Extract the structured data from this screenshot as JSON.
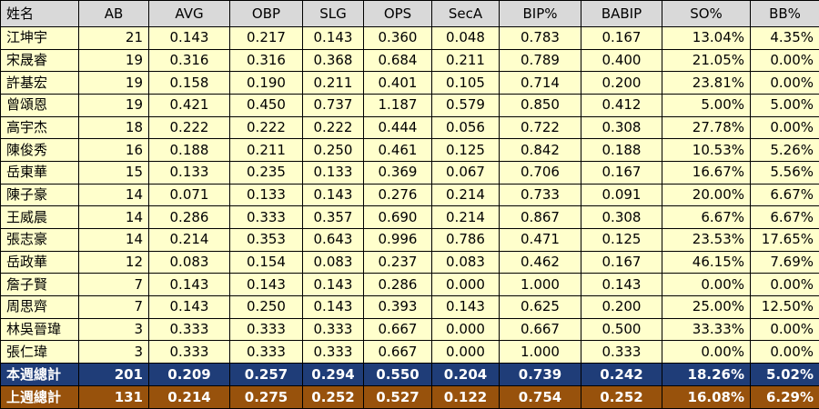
{
  "colors": {
    "header_bg": "#d9d9d9",
    "row_bg": "#ffffcc",
    "this_week_bg": "#1f3d78",
    "last_week_bg": "#98520c",
    "border": "#000000"
  },
  "headers": [
    "姓名",
    "AB",
    "AVG",
    "OBP",
    "SLG",
    "OPS",
    "SecA",
    "BIP%",
    "BABIP",
    "SO%",
    "BB%"
  ],
  "players": [
    {
      "name": "江坤宇",
      "ab": "21",
      "avg": "0.143",
      "obp": "0.217",
      "slg": "0.143",
      "ops": "0.360",
      "seca": "0.048",
      "bip": "0.783",
      "babip": "0.167",
      "so": "13.04%",
      "bb": "4.35%"
    },
    {
      "name": "宋晟睿",
      "ab": "19",
      "avg": "0.316",
      "obp": "0.316",
      "slg": "0.368",
      "ops": "0.684",
      "seca": "0.211",
      "bip": "0.789",
      "babip": "0.400",
      "so": "21.05%",
      "bb": "0.00%"
    },
    {
      "name": "許基宏",
      "ab": "19",
      "avg": "0.158",
      "obp": "0.190",
      "slg": "0.211",
      "ops": "0.401",
      "seca": "0.105",
      "bip": "0.714",
      "babip": "0.200",
      "so": "23.81%",
      "bb": "0.00%"
    },
    {
      "name": "曾頌恩",
      "ab": "19",
      "avg": "0.421",
      "obp": "0.450",
      "slg": "0.737",
      "ops": "1.187",
      "seca": "0.579",
      "bip": "0.850",
      "babip": "0.412",
      "so": "5.00%",
      "bb": "5.00%"
    },
    {
      "name": "高宇杰",
      "ab": "18",
      "avg": "0.222",
      "obp": "0.222",
      "slg": "0.222",
      "ops": "0.444",
      "seca": "0.056",
      "bip": "0.722",
      "babip": "0.308",
      "so": "27.78%",
      "bb": "0.00%"
    },
    {
      "name": "陳俊秀",
      "ab": "16",
      "avg": "0.188",
      "obp": "0.211",
      "slg": "0.250",
      "ops": "0.461",
      "seca": "0.125",
      "bip": "0.842",
      "babip": "0.188",
      "so": "10.53%",
      "bb": "5.26%"
    },
    {
      "name": "岳東華",
      "ab": "15",
      "avg": "0.133",
      "obp": "0.235",
      "slg": "0.133",
      "ops": "0.369",
      "seca": "0.067",
      "bip": "0.706",
      "babip": "0.167",
      "so": "16.67%",
      "bb": "5.56%"
    },
    {
      "name": "陳子豪",
      "ab": "14",
      "avg": "0.071",
      "obp": "0.133",
      "slg": "0.143",
      "ops": "0.276",
      "seca": "0.214",
      "bip": "0.733",
      "babip": "0.091",
      "so": "20.00%",
      "bb": "6.67%"
    },
    {
      "name": "王威晨",
      "ab": "14",
      "avg": "0.286",
      "obp": "0.333",
      "slg": "0.357",
      "ops": "0.690",
      "seca": "0.214",
      "bip": "0.867",
      "babip": "0.308",
      "so": "6.67%",
      "bb": "6.67%"
    },
    {
      "name": "張志豪",
      "ab": "14",
      "avg": "0.214",
      "obp": "0.353",
      "slg": "0.643",
      "ops": "0.996",
      "seca": "0.786",
      "bip": "0.471",
      "babip": "0.125",
      "so": "23.53%",
      "bb": "17.65%"
    },
    {
      "name": "岳政華",
      "ab": "12",
      "avg": "0.083",
      "obp": "0.154",
      "slg": "0.083",
      "ops": "0.237",
      "seca": "0.083",
      "bip": "0.462",
      "babip": "0.167",
      "so": "46.15%",
      "bb": "7.69%"
    },
    {
      "name": "詹子賢",
      "ab": "7",
      "avg": "0.143",
      "obp": "0.143",
      "slg": "0.143",
      "ops": "0.286",
      "seca": "0.000",
      "bip": "1.000",
      "babip": "0.143",
      "so": "0.00%",
      "bb": "0.00%"
    },
    {
      "name": "周思齊",
      "ab": "7",
      "avg": "0.143",
      "obp": "0.250",
      "slg": "0.143",
      "ops": "0.393",
      "seca": "0.143",
      "bip": "0.625",
      "babip": "0.200",
      "so": "25.00%",
      "bb": "12.50%"
    },
    {
      "name": "林吳晉瑋",
      "ab": "3",
      "avg": "0.333",
      "obp": "0.333",
      "slg": "0.333",
      "ops": "0.667",
      "seca": "0.000",
      "bip": "0.667",
      "babip": "0.500",
      "so": "33.33%",
      "bb": "0.00%"
    },
    {
      "name": "張仁瑋",
      "ab": "3",
      "avg": "0.333",
      "obp": "0.333",
      "slg": "0.333",
      "ops": "0.667",
      "seca": "0.000",
      "bip": "1.000",
      "babip": "0.333",
      "so": "0.00%",
      "bb": "0.00%"
    }
  ],
  "totals": [
    {
      "name": "本週總計",
      "ab": "201",
      "avg": "0.209",
      "obp": "0.257",
      "slg": "0.294",
      "ops": "0.550",
      "seca": "0.204",
      "bip": "0.739",
      "babip": "0.242",
      "so": "18.26%",
      "bb": "5.02%"
    },
    {
      "name": "上週總計",
      "ab": "131",
      "avg": "0.214",
      "obp": "0.275",
      "slg": "0.252",
      "ops": "0.527",
      "seca": "0.122",
      "bip": "0.754",
      "babip": "0.252",
      "so": "16.08%",
      "bb": "6.29%"
    }
  ]
}
